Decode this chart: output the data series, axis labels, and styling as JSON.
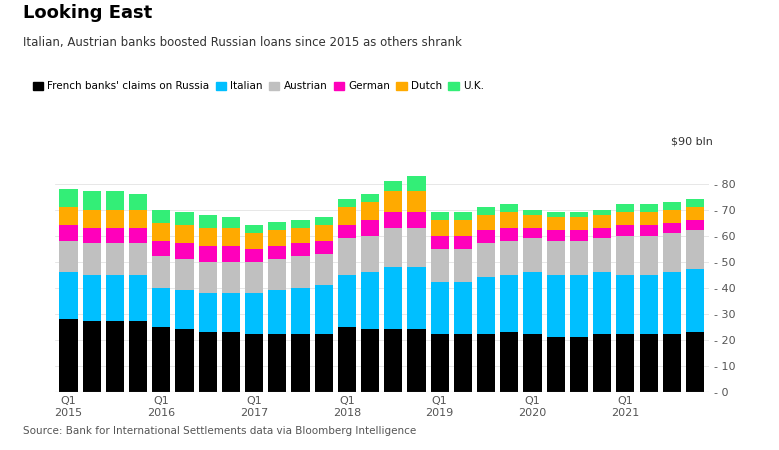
{
  "title": "Looking East",
  "subtitle": "Italian, Austrian banks boosted Russian loans since 2015 as others shrank",
  "source": "Source: Bank for International Settlements data via Bloomberg Intelligence",
  "ylabel": "$90 bln",
  "ylim": [
    0,
    90
  ],
  "yticks": [
    0,
    10,
    20,
    30,
    40,
    50,
    60,
    70,
    80
  ],
  "series_labels": [
    "French banks' claims on Russia",
    "Italian",
    "Austrian",
    "German",
    "Dutch",
    "U.K."
  ],
  "colors": [
    "#000000",
    "#00bfff",
    "#c0c0c0",
    "#ff00bb",
    "#ffaa00",
    "#33ee77"
  ],
  "data": {
    "French": [
      28,
      27,
      27,
      27,
      25,
      24,
      23,
      23,
      22,
      22,
      22,
      22,
      25,
      24,
      24,
      24,
      22,
      22,
      22,
      23,
      22,
      21,
      21,
      22,
      22,
      22,
      22,
      23
    ],
    "Italian": [
      18,
      18,
      18,
      18,
      15,
      15,
      15,
      15,
      16,
      17,
      18,
      19,
      20,
      22,
      24,
      24,
      20,
      20,
      22,
      22,
      24,
      24,
      24,
      24,
      23,
      23,
      24,
      24
    ],
    "Austrian": [
      12,
      12,
      12,
      12,
      12,
      12,
      12,
      12,
      12,
      12,
      12,
      12,
      14,
      14,
      15,
      15,
      13,
      13,
      13,
      13,
      13,
      13,
      13,
      13,
      15,
      15,
      15,
      15
    ],
    "German": [
      6,
      6,
      6,
      6,
      6,
      6,
      6,
      6,
      5,
      5,
      5,
      5,
      5,
      6,
      6,
      6,
      5,
      5,
      5,
      5,
      4,
      4,
      4,
      4,
      4,
      4,
      4,
      4
    ],
    "Dutch": [
      7,
      7,
      7,
      7,
      7,
      7,
      7,
      7,
      6,
      6,
      6,
      6,
      7,
      7,
      8,
      8,
      6,
      6,
      6,
      6,
      5,
      5,
      5,
      5,
      5,
      5,
      5,
      5
    ],
    "UK": [
      7,
      7,
      7,
      6,
      5,
      5,
      5,
      4,
      3,
      3,
      3,
      3,
      3,
      3,
      4,
      6,
      3,
      3,
      3,
      3,
      2,
      2,
      2,
      2,
      3,
      3,
      3,
      3
    ]
  },
  "background_color": "#ffffff"
}
